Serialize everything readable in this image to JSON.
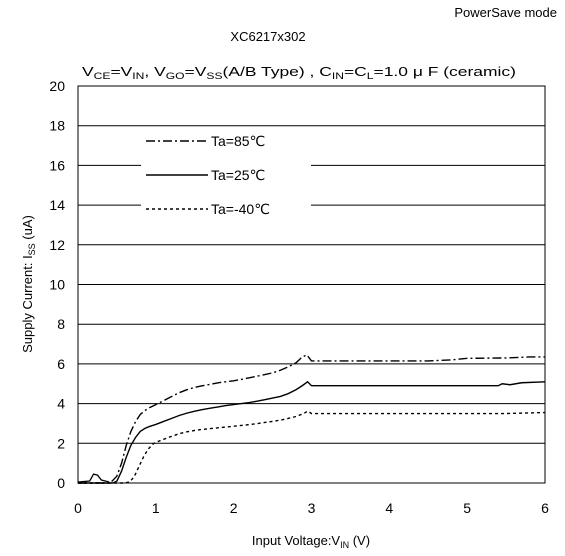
{
  "chart_data": {
    "type": "line",
    "title": "XC6217x302",
    "mode_label": "PowerSave mode",
    "conditions": {
      "vce_vin": [
        "V",
        "CE",
        "=V",
        "IN",
        ", "
      ],
      "vgo_vss": [
        "V",
        "GO",
        "=V",
        "SS",
        "(A/B Type) , "
      ],
      "cin_cl": [
        "C",
        "IN",
        "=C",
        "L",
        "=1.0 μ F (ceramic)"
      ]
    },
    "xlabel": [
      "Input Voltage:V",
      "IN",
      " (V)"
    ],
    "ylabel": [
      "Supply Current: I",
      "SS",
      " (uA)"
    ],
    "xlim": [
      0,
      6
    ],
    "ylim": [
      0,
      20
    ],
    "xticks": [
      "0",
      "1",
      "2",
      "3",
      "4",
      "5",
      "6"
    ],
    "yticks": [
      "0",
      "2",
      "4",
      "6",
      "8",
      "10",
      "12",
      "14",
      "16",
      "18",
      "20"
    ],
    "grid": "horizontal",
    "legend_position": "top-left",
    "series": [
      {
        "name": "Ta=85℃",
        "dash": "dash-dot",
        "x": [
          0,
          0.4,
          0.44,
          0.5,
          0.56,
          0.62,
          0.68,
          0.74,
          0.8,
          0.86,
          0.92,
          1.0,
          1.1,
          1.2,
          1.3,
          1.4,
          1.5,
          1.6,
          1.7,
          1.8,
          1.9,
          2.0,
          2.1,
          2.2,
          2.3,
          2.4,
          2.5,
          2.6,
          2.7,
          2.8,
          2.88,
          2.94,
          3.0,
          3.3,
          3.6,
          4.0,
          4.5,
          4.8,
          5.0,
          5.5,
          5.8,
          6.0
        ],
        "values": [
          0,
          0,
          0.1,
          0.35,
          1.0,
          1.9,
          2.6,
          3.1,
          3.45,
          3.65,
          3.8,
          3.95,
          4.15,
          4.35,
          4.55,
          4.7,
          4.82,
          4.9,
          4.97,
          5.05,
          5.1,
          5.15,
          5.22,
          5.3,
          5.38,
          5.46,
          5.55,
          5.68,
          5.85,
          6.05,
          6.35,
          6.45,
          6.15,
          6.15,
          6.15,
          6.15,
          6.15,
          6.2,
          6.28,
          6.3,
          6.35,
          6.35
        ]
      },
      {
        "name": "Ta=25℃",
        "dash": "solid",
        "x": [
          0,
          0.45,
          0.5,
          0.56,
          0.62,
          0.68,
          0.74,
          0.8,
          0.86,
          0.92,
          1.0,
          1.1,
          1.2,
          1.3,
          1.4,
          1.5,
          1.6,
          1.7,
          1.8,
          1.9,
          2.0,
          2.1,
          2.2,
          2.3,
          2.4,
          2.5,
          2.6,
          2.7,
          2.8,
          2.88,
          2.95,
          3.0,
          3.5,
          4.0,
          4.5,
          5.0,
          5.4,
          5.45,
          5.55,
          5.7,
          6.0
        ],
        "values": [
          0,
          0,
          0.1,
          0.6,
          1.3,
          1.9,
          2.3,
          2.6,
          2.75,
          2.85,
          2.95,
          3.1,
          3.25,
          3.4,
          3.52,
          3.62,
          3.7,
          3.77,
          3.83,
          3.9,
          3.95,
          4.0,
          4.05,
          4.12,
          4.2,
          4.28,
          4.36,
          4.5,
          4.7,
          4.9,
          5.1,
          4.9,
          4.9,
          4.9,
          4.9,
          4.9,
          4.9,
          5.0,
          4.95,
          5.05,
          5.1
        ]
      },
      {
        "name": "Ta=-40℃",
        "dash": "dotted",
        "x": [
          0,
          0.6,
          0.66,
          0.72,
          0.78,
          0.84,
          0.9,
          0.96,
          1.0,
          1.1,
          1.2,
          1.3,
          1.4,
          1.5,
          1.6,
          1.7,
          1.8,
          1.9,
          2.0,
          2.1,
          2.2,
          2.3,
          2.4,
          2.5,
          2.6,
          2.7,
          2.8,
          2.9,
          2.95,
          3.0,
          3.5,
          4.0,
          4.5,
          5.0,
          5.5,
          6.0
        ],
        "values": [
          0,
          0,
          0.05,
          0.3,
          0.8,
          1.3,
          1.7,
          1.95,
          2.05,
          2.2,
          2.35,
          2.48,
          2.58,
          2.65,
          2.7,
          2.74,
          2.78,
          2.82,
          2.86,
          2.9,
          2.94,
          2.99,
          3.05,
          3.1,
          3.17,
          3.25,
          3.35,
          3.5,
          3.62,
          3.5,
          3.5,
          3.5,
          3.5,
          3.5,
          3.5,
          3.55
        ]
      }
    ],
    "low_voltage_spikes": {
      "x": [
        0,
        0.15,
        0.2,
        0.25,
        0.3,
        0.35,
        0.4
      ],
      "values": [
        0.05,
        0.1,
        0.45,
        0.4,
        0.15,
        0.1,
        0.05
      ]
    }
  }
}
